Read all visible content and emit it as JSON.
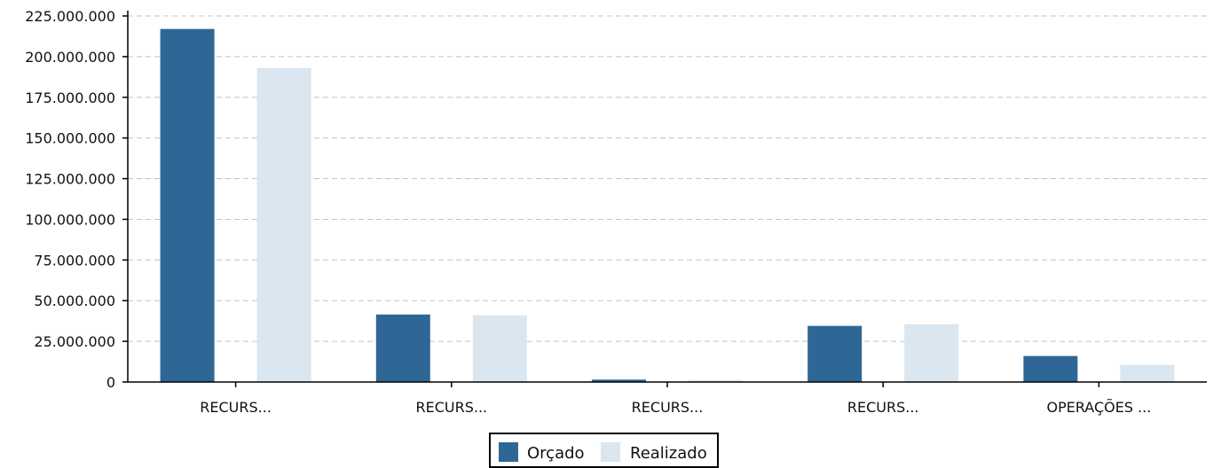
{
  "chart_data": {
    "type": "bar",
    "categories": [
      "RECURS...",
      "RECURS...",
      "RECURS...",
      "RECURS...",
      "OPERAÇÕES ..."
    ],
    "series": [
      {
        "name": "Orçado",
        "color": "#2e6795",
        "values": [
          217000000,
          41500000,
          1500000,
          34500000,
          16000000
        ]
      },
      {
        "name": "Realizado",
        "color": "#dae6f0",
        "values": [
          193000000,
          41000000,
          1200000,
          35500000,
          10500000
        ]
      }
    ],
    "ylim": [
      0,
      225000000
    ],
    "yticks": [
      0,
      25000000,
      50000000,
      75000000,
      100000000,
      125000000,
      150000000,
      175000000,
      200000000,
      225000000
    ],
    "ytick_labels": [
      "0",
      "25.000.000",
      "50.000.000",
      "75.000.000",
      "100.000.000",
      "125.000.000",
      "150.000.000",
      "175.000.000",
      "200.000.000",
      "225.000.000"
    ],
    "grid": true,
    "legend_position": "bottom-center",
    "title": "",
    "xlabel": "",
    "ylabel": ""
  }
}
